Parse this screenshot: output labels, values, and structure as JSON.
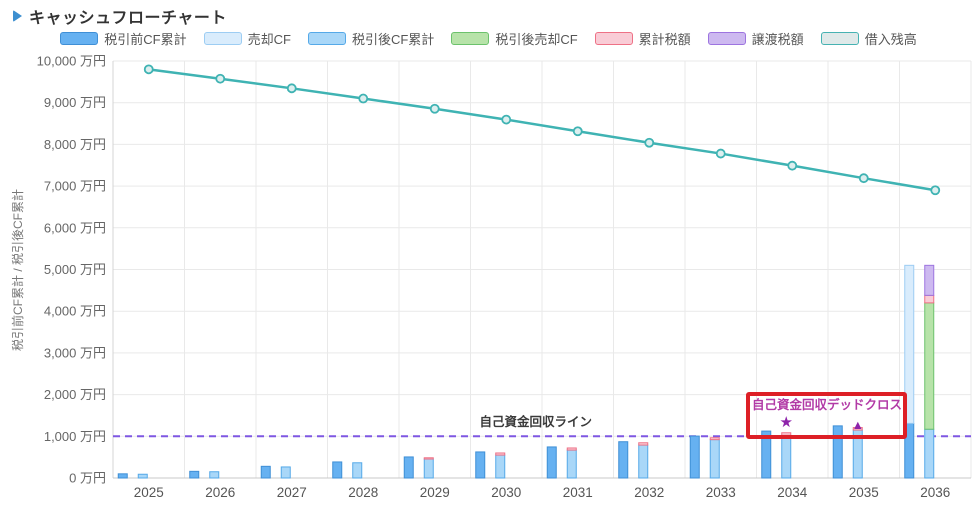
{
  "header": {
    "title": "キャッシュフローチャート"
  },
  "chart_data": {
    "type": "bar+line",
    "title": "キャッシュフローチャート",
    "ylabel": "税引前CF累計 / 税引後CF累計",
    "y_unit": "万円",
    "ylim": [
      0,
      10000
    ],
    "y_tick_step": 1000,
    "y_tick_labels": [
      "0 万円",
      "1,000 万円",
      "2,000 万円",
      "3,000 万円",
      "4,000 万円",
      "5,000 万円",
      "6,000 万円",
      "7,000 万円",
      "8,000 万円",
      "9,000 万円",
      "10,000 万円"
    ],
    "categories": [
      "2025",
      "2026",
      "2027",
      "2028",
      "2029",
      "2030",
      "2031",
      "2032",
      "2033",
      "2034",
      "2035",
      "2036"
    ],
    "legend": [
      {
        "key": "pretax_cf",
        "name": "税引前CF累計",
        "fill": "#66b1f1",
        "border": "#3f8fd6"
      },
      {
        "key": "sale_cf",
        "name": "売却CF",
        "fill": "#d9ecfc",
        "border": "#9dcdf3"
      },
      {
        "key": "aftertax_cf",
        "name": "税引後CF累計",
        "fill": "#a9d7f8",
        "border": "#55a9e8"
      },
      {
        "key": "aftertax_sale_cf",
        "name": "税引後売却CF",
        "fill": "#b7e3a9",
        "border": "#6cc26c"
      },
      {
        "key": "cumulative_tax",
        "name": "累計税額",
        "fill": "#f9ccd6",
        "border": "#ee7186"
      },
      {
        "key": "transfer_tax",
        "name": "譲渡税額",
        "fill": "#cdb9f0",
        "border": "#9d74e0"
      },
      {
        "key": "loan_balance",
        "name": "借入残高",
        "fill": "#dfe9e9",
        "border": "#46b2b2"
      }
    ],
    "bar_groups": {
      "left": [
        "pretax_cf",
        "sale_cf"
      ],
      "right": [
        "aftertax_cf",
        "aftertax_sale_cf",
        "cumulative_tax",
        "transfer_tax"
      ]
    },
    "series": [
      {
        "key": "pretax_cf",
        "name": "税引前CF累計",
        "type": "bar",
        "values": [
          100,
          160,
          280,
          385,
          505,
          625,
          745,
          870,
          1005,
          1125,
          1250,
          1310
        ]
      },
      {
        "key": "sale_cf",
        "name": "売却CF",
        "type": "bar",
        "values": [
          0,
          0,
          0,
          0,
          0,
          0,
          0,
          0,
          0,
          0,
          0,
          3790
        ]
      },
      {
        "key": "aftertax_cf",
        "name": "税引後CF累計",
        "type": "bar",
        "values": [
          90,
          150,
          265,
          365,
          455,
          550,
          670,
          790,
          920,
          1025,
          1150,
          1170
        ]
      },
      {
        "key": "aftertax_sale_cf",
        "name": "税引後売却CF",
        "type": "bar",
        "values": [
          0,
          0,
          0,
          0,
          0,
          0,
          0,
          0,
          0,
          0,
          0,
          3030
        ]
      },
      {
        "key": "cumulative_tax",
        "name": "累計税額",
        "type": "bar",
        "values": [
          0,
          0,
          0,
          0,
          30,
          50,
          50,
          55,
          45,
          60,
          60,
          180
        ]
      },
      {
        "key": "transfer_tax",
        "name": "譲渡税額",
        "type": "bar",
        "values": [
          0,
          0,
          0,
          0,
          0,
          0,
          0,
          0,
          0,
          0,
          0,
          720
        ]
      },
      {
        "key": "loan_balance",
        "name": "借入残高",
        "type": "line",
        "values": [
          9800,
          9575,
          9345,
          9100,
          8855,
          8595,
          8315,
          8040,
          7780,
          7490,
          7190,
          6900
        ]
      }
    ],
    "reference_line": {
      "value": 1000,
      "label": "自己資金回収ライン",
      "color": "#7e57e2",
      "label_color": "#3a3a3a"
    },
    "annotation": {
      "label": "自己資金回収デッドクロス",
      "text_color": "#b23aa6",
      "box_color": "#dd1f26",
      "markers": [
        {
          "shape": "star",
          "glyph": "★",
          "year": "2034",
          "value": 1345,
          "color": "#8e24aa"
        },
        {
          "shape": "triangle",
          "glyph": "▲",
          "year": "2035",
          "value": 1300,
          "color": "#8e24aa"
        }
      ]
    },
    "colors": {
      "line": "#3fb3b3",
      "line_marker_fill": "#ddefef",
      "grid": "#e9e9e9",
      "axis_y": "#d4d4d4",
      "axis_x": "#c8c8c8",
      "tick_text": "#666666",
      "x_tick_text": "#555555",
      "y_title_text": "#777777"
    }
  }
}
